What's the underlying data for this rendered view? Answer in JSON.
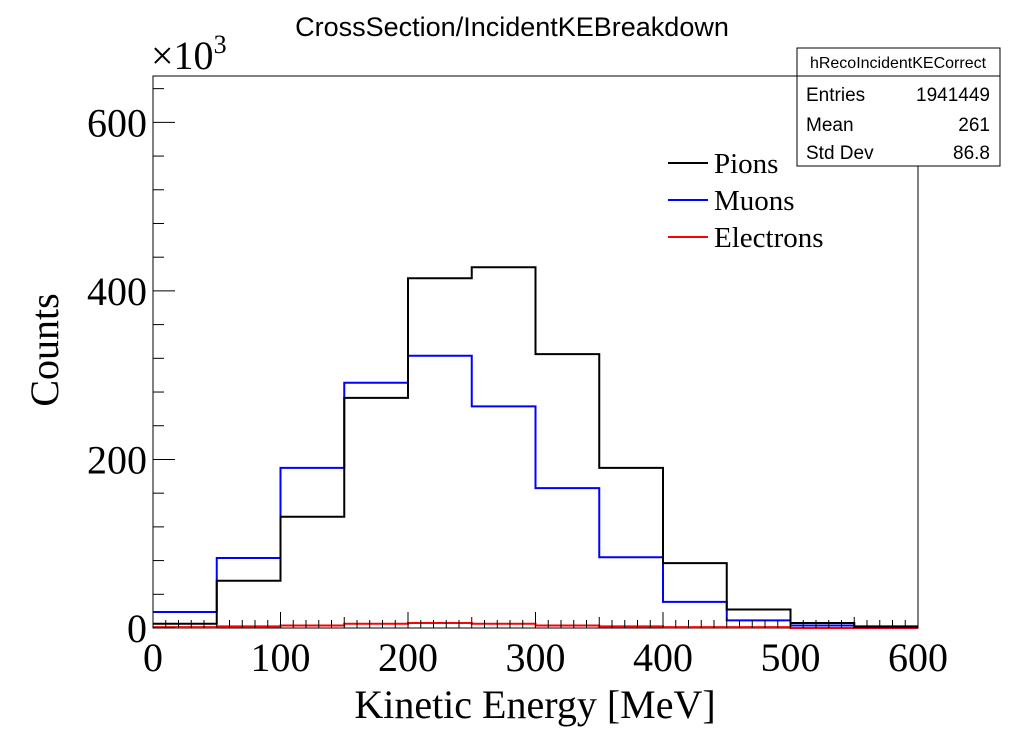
{
  "chart_data": {
    "type": "histogram",
    "title": "CrossSection/IncidentKEBreakdown",
    "xlabel": "Kinetic Energy [MeV]",
    "ylabel": "Counts",
    "y_multiplier_label": "×10",
    "y_multiplier_exponent": "3",
    "xlim": [
      0,
      600
    ],
    "ylim": [
      0,
      655
    ],
    "x_ticks": [
      0,
      100,
      200,
      300,
      400,
      500,
      600
    ],
    "y_ticks": [
      0,
      200,
      400,
      600
    ],
    "bin_edges": [
      0,
      50,
      100,
      150,
      200,
      250,
      300,
      350,
      400,
      450,
      500,
      550,
      600
    ],
    "series": [
      {
        "name": "Pions",
        "color": "#000000",
        "values": [
          5,
          56,
          132,
          273,
          415,
          428,
          325,
          190,
          77,
          22,
          6,
          2
        ]
      },
      {
        "name": "Muons",
        "color": "#0000ff",
        "values": [
          19,
          83,
          190,
          291,
          323,
          263,
          166,
          84,
          31,
          9,
          3,
          1
        ]
      },
      {
        "name": "Electrons",
        "color": "#ff0000",
        "values": [
          1,
          2,
          3,
          5,
          6,
          5,
          3,
          2,
          1,
          1,
          0,
          0
        ]
      }
    ],
    "legend_position": "top-right",
    "stats_box": {
      "name": "hRecoIncidentKECorrect",
      "rows": [
        {
          "label": "Entries",
          "value": "1941449"
        },
        {
          "label": "Mean",
          "value": "261"
        },
        {
          "label": "Std Dev",
          "value": "86.8"
        }
      ]
    }
  }
}
